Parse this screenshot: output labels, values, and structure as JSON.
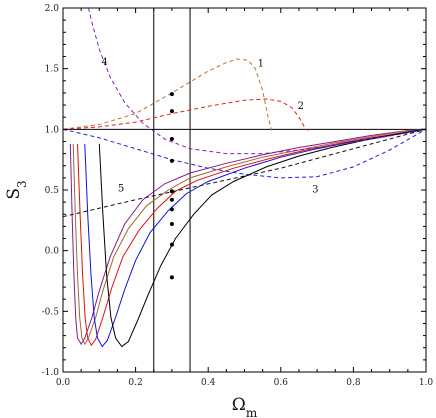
{
  "chart_data": {
    "type": "line",
    "title": "",
    "xlabel": "Ωm",
    "ylabel": "S3",
    "xlim": [
      0,
      1
    ],
    "ylim": [
      -1,
      2
    ],
    "grid": false,
    "x_ticks": [
      "0.0",
      "0.2",
      "0.4",
      "0.6",
      "0.8",
      "1.0"
    ],
    "y_ticks": [
      "-1.0",
      "-0.5",
      "0.0",
      "0.5",
      "1.0",
      "1.5",
      "2.0"
    ],
    "reference_lines": {
      "horizontal_y": [
        1.0
      ],
      "vertical_x": [
        0.25,
        0.35
      ]
    },
    "solid_series": [
      {
        "color": "#8b1a8b",
        "x": [
          0.02,
          0.025,
          0.03,
          0.035,
          0.04,
          0.05,
          0.06,
          0.08,
          0.1,
          0.13,
          0.17,
          0.22,
          0.28,
          0.35,
          0.45,
          0.55,
          0.65,
          0.75,
          0.85,
          0.95,
          1.0
        ],
        "y": [
          0.88,
          0.3,
          -0.2,
          -0.55,
          -0.72,
          -0.77,
          -0.72,
          -0.55,
          -0.33,
          -0.05,
          0.22,
          0.42,
          0.55,
          0.64,
          0.72,
          0.79,
          0.85,
          0.9,
          0.95,
          0.99,
          1.0
        ]
      },
      {
        "color": "#a06a30",
        "x": [
          0.028,
          0.034,
          0.04,
          0.046,
          0.052,
          0.06,
          0.07,
          0.09,
          0.11,
          0.14,
          0.18,
          0.23,
          0.29,
          0.35,
          0.45,
          0.55,
          0.65,
          0.75,
          0.85,
          0.95,
          1.0
        ],
        "y": [
          0.88,
          0.3,
          -0.2,
          -0.55,
          -0.72,
          -0.77,
          -0.72,
          -0.55,
          -0.33,
          -0.05,
          0.18,
          0.37,
          0.5,
          0.6,
          0.69,
          0.77,
          0.83,
          0.89,
          0.94,
          0.99,
          1.0
        ]
      },
      {
        "color": "#e01010",
        "x": [
          0.04,
          0.047,
          0.054,
          0.061,
          0.068,
          0.078,
          0.09,
          0.11,
          0.135,
          0.165,
          0.21,
          0.26,
          0.31,
          0.37,
          0.47,
          0.57,
          0.67,
          0.77,
          0.87,
          0.95,
          1.0
        ],
        "y": [
          0.88,
          0.3,
          -0.2,
          -0.55,
          -0.72,
          -0.78,
          -0.73,
          -0.55,
          -0.3,
          -0.05,
          0.17,
          0.35,
          0.49,
          0.58,
          0.68,
          0.76,
          0.83,
          0.89,
          0.94,
          0.98,
          1.0
        ]
      },
      {
        "color": "#1010e0",
        "x": [
          0.06,
          0.068,
          0.077,
          0.086,
          0.095,
          0.108,
          0.122,
          0.145,
          0.17,
          0.2,
          0.24,
          0.29,
          0.34,
          0.4,
          0.5,
          0.6,
          0.7,
          0.8,
          0.9,
          0.97,
          1.0
        ],
        "y": [
          0.88,
          0.3,
          -0.2,
          -0.55,
          -0.72,
          -0.79,
          -0.74,
          -0.55,
          -0.32,
          -0.08,
          0.15,
          0.33,
          0.47,
          0.57,
          0.68,
          0.77,
          0.84,
          0.9,
          0.95,
          0.99,
          1.0
        ]
      },
      {
        "color": "#000000",
        "x": [
          0.1,
          0.11,
          0.12,
          0.132,
          0.145,
          0.162,
          0.18,
          0.205,
          0.235,
          0.27,
          0.31,
          0.36,
          0.41,
          0.47,
          0.56,
          0.65,
          0.74,
          0.83,
          0.92,
          0.98,
          1.0
        ],
        "y": [
          0.88,
          0.3,
          -0.2,
          -0.55,
          -0.72,
          -0.79,
          -0.75,
          -0.58,
          -0.36,
          -0.12,
          0.1,
          0.3,
          0.46,
          0.57,
          0.69,
          0.78,
          0.85,
          0.91,
          0.96,
          0.99,
          1.0
        ]
      }
    ],
    "dashed_series": [
      {
        "name": "1",
        "color": "#c07030",
        "x": [
          0.0,
          0.1,
          0.2,
          0.3,
          0.4,
          0.45,
          0.48,
          0.51,
          0.53,
          0.55,
          0.565,
          0.575
        ],
        "y": [
          1.0,
          1.04,
          1.13,
          1.3,
          1.48,
          1.55,
          1.58,
          1.57,
          1.5,
          1.32,
          1.1,
          0.99
        ]
      },
      {
        "name": "2",
        "color": "#e02020",
        "x": [
          0.0,
          0.1,
          0.2,
          0.3,
          0.4,
          0.5,
          0.56,
          0.6,
          0.63,
          0.65,
          0.665,
          0.675
        ],
        "y": [
          1.0,
          1.02,
          1.06,
          1.13,
          1.19,
          1.24,
          1.25,
          1.23,
          1.18,
          1.1,
          1.02,
          0.99
        ]
      },
      {
        "name": "3",
        "color": "#2020e0",
        "x": [
          0.0,
          0.1,
          0.2,
          0.3,
          0.4,
          0.5,
          0.6,
          0.7,
          0.8,
          0.9,
          1.0
        ],
        "y": [
          1.0,
          0.93,
          0.84,
          0.75,
          0.68,
          0.63,
          0.6,
          0.61,
          0.69,
          0.83,
          1.0
        ]
      },
      {
        "name": "4",
        "color": "#8020c0",
        "x": [
          0.07,
          0.08,
          0.1,
          0.13,
          0.17,
          0.22,
          0.28,
          0.35,
          0.45,
          0.55,
          0.65,
          0.75,
          0.85,
          0.95,
          1.0
        ],
        "y": [
          2.0,
          1.88,
          1.66,
          1.43,
          1.22,
          1.05,
          0.92,
          0.84,
          0.8,
          0.8,
          0.83,
          0.87,
          0.92,
          0.97,
          1.0
        ]
      },
      {
        "name": "5",
        "color": "#111111",
        "x": [
          0.0,
          0.2,
          0.4,
          0.6,
          0.8,
          1.0
        ],
        "y": [
          0.28,
          0.42,
          0.55,
          0.68,
          0.84,
          1.0
        ]
      }
    ],
    "markers": {
      "x": 0.3,
      "y": [
        1.29,
        1.15,
        0.92,
        0.74,
        0.49,
        0.42,
        0.34,
        0.22,
        0.05,
        -0.22
      ]
    },
    "curve_labels": [
      {
        "text": "1",
        "x": 0.545,
        "y": 1.54
      },
      {
        "text": "2",
        "x": 0.655,
        "y": 1.19
      },
      {
        "text": "3",
        "x": 0.695,
        "y": 0.5
      },
      {
        "text": "4",
        "x": 0.115,
        "y": 1.55
      },
      {
        "text": "5",
        "x": 0.16,
        "y": 0.51
      }
    ]
  }
}
